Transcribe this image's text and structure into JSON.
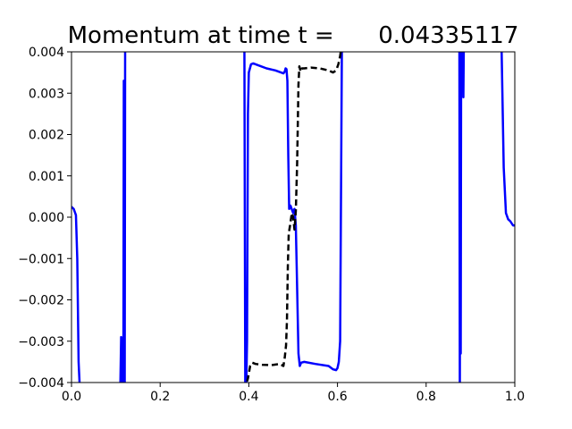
{
  "chart_data": {
    "type": "line",
    "title": "Momentum at time t =      0.04335117",
    "xlabel": "",
    "ylabel": "",
    "xlim": [
      0.0,
      1.0
    ],
    "ylim": [
      -0.004,
      0.004
    ],
    "xticks": [
      0.0,
      0.2,
      0.4,
      0.6,
      0.8,
      1.0
    ],
    "xtick_labels": [
      "0.0",
      "0.2",
      "0.4",
      "0.6",
      "0.8",
      "1.0"
    ],
    "yticks": [
      -0.004,
      -0.003,
      -0.002,
      -0.001,
      0.0,
      0.001,
      0.002,
      0.003,
      0.004
    ],
    "ytick_labels": [
      "−0.004",
      "−0.003",
      "−0.002",
      "−0.001",
      "0.000",
      "0.001",
      "0.002",
      "0.003",
      "0.004"
    ],
    "grid": false,
    "legend": false,
    "series": [
      {
        "color": "#0000ff",
        "style": "solid",
        "x": [
          0.0,
          0.005,
          0.01,
          0.013,
          0.016,
          0.019,
          0.11,
          0.112,
          0.114,
          0.115,
          0.117,
          0.118,
          0.12,
          0.121,
          0.122,
          0.39,
          0.392,
          0.394,
          0.396,
          0.398,
          0.4,
          0.405,
          0.41,
          0.42,
          0.44,
          0.46,
          0.478,
          0.481,
          0.483,
          0.485,
          0.487,
          0.489,
          0.491,
          0.494,
          0.5,
          0.503,
          0.506,
          0.508,
          0.512,
          0.515,
          0.518,
          0.525,
          0.55,
          0.58,
          0.59,
          0.597,
          0.6,
          0.603,
          0.606,
          0.61,
          0.875,
          0.876,
          0.877,
          0.878,
          0.879,
          0.88,
          0.881,
          0.882,
          0.883,
          0.884,
          0.885,
          0.886,
          0.888,
          0.97,
          0.975,
          0.98,
          0.985,
          0.99,
          0.996,
          1.0
        ],
        "y": [
          0.00025,
          0.0002,
          5e-05,
          -0.001,
          -0.0035,
          -0.0042,
          -0.0042,
          -0.0029,
          -0.0042,
          -0.0031,
          -0.0042,
          0.0033,
          -0.0042,
          0.0042,
          0.0042,
          0.0042,
          -0.0042,
          -0.0042,
          -0.003,
          0.0025,
          0.0035,
          0.0037,
          0.00372,
          0.00368,
          0.0036,
          0.00355,
          0.00348,
          0.00352,
          0.0036,
          0.00358,
          0.0033,
          0.0015,
          0.0002,
          0.00028,
          0.0001,
          0.0002,
          -0.0002,
          -0.0012,
          -0.0033,
          -0.0036,
          -0.00352,
          -0.0035,
          -0.00355,
          -0.0036,
          -0.00368,
          -0.0037,
          -0.00365,
          -0.0035,
          -0.003,
          0.0042,
          0.0042,
          -0.0042,
          0.0042,
          -0.0033,
          0.0042,
          0.0038,
          0.0042,
          0.0032,
          0.0042,
          0.0029,
          0.0042,
          0.0042,
          0.0042,
          0.0042,
          0.0012,
          0.0001,
          -5e-05,
          -0.0001,
          -0.0002,
          -0.0002
        ]
      },
      {
        "color": "#000000",
        "style": "dashed",
        "x": [
          0.39,
          0.398,
          0.403,
          0.408,
          0.415,
          0.43,
          0.45,
          0.47,
          0.478,
          0.481,
          0.484,
          0.486,
          0.488,
          0.49,
          0.493,
          0.497,
          0.5,
          0.503,
          0.506,
          0.509,
          0.512,
          0.514,
          0.517,
          0.52,
          0.525,
          0.54,
          0.56,
          0.58,
          0.59,
          0.597,
          0.602,
          0.606,
          0.61
        ],
        "y": [
          -0.0042,
          -0.0039,
          -0.0036,
          -0.00352,
          -0.00355,
          -0.00357,
          -0.00358,
          -0.00355,
          -0.0036,
          -0.0034,
          -0.0031,
          -0.0025,
          -0.0012,
          -0.0004,
          -0.0002,
          0.0001,
          0.0,
          -0.0003,
          0.00015,
          0.0013,
          0.0032,
          0.00365,
          0.00352,
          0.0036,
          0.0036,
          0.00362,
          0.0036,
          0.00355,
          0.0035,
          0.00355,
          0.0037,
          0.0039,
          0.0042
        ]
      }
    ]
  }
}
